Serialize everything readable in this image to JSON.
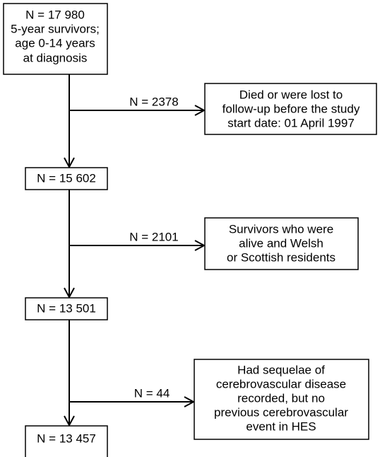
{
  "nodes": [
    {
      "lines": [
        "N = 17 980",
        "5-year survivors;",
        "age 0-14 years",
        "at diagnosis"
      ]
    },
    {
      "lines": [
        "N = 15 602"
      ]
    },
    {
      "lines": [
        "N = 13 501"
      ]
    },
    {
      "lines": [
        "N = 13 457"
      ]
    }
  ],
  "exclusions": [
    {
      "count": "N = 2378",
      "lines": [
        "Died or were lost to",
        "follow-up before the study",
        "start date: 01 April 1997"
      ]
    },
    {
      "count": "N = 2101",
      "lines": [
        "Survivors who were",
        "alive and Welsh",
        "or Scottish residents"
      ]
    },
    {
      "count": "N = 44",
      "lines": [
        "Had sequelae of",
        "cerebrovascular disease",
        "recorded, but no",
        "previous cerebrovascular",
        "event in HES"
      ]
    }
  ]
}
